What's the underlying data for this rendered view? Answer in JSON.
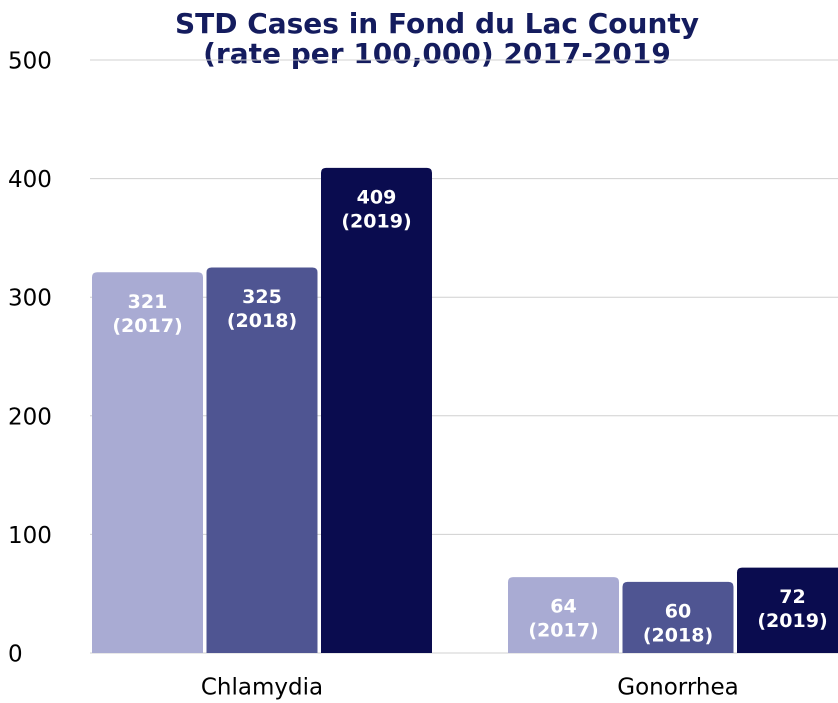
{
  "chart_data": {
    "type": "bar",
    "title": [
      "STD Cases in Fond du Lac County",
      "(rate per 100,000) 2017-2019"
    ],
    "categories": [
      "Chlamydia",
      "Gonorrhea"
    ],
    "series": [
      {
        "name": "(2017)",
        "color": "#a9abd3",
        "values": [
          321,
          64
        ]
      },
      {
        "name": "(2018)",
        "color": "#4f5592",
        "values": [
          325,
          60
        ]
      },
      {
        "name": "(2019)",
        "color": "#0a0c4f",
        "values": [
          409,
          72
        ]
      }
    ],
    "ylim": [
      0,
      500
    ],
    "yticks": [
      0,
      100,
      200,
      300,
      400,
      500
    ],
    "grid": true
  }
}
